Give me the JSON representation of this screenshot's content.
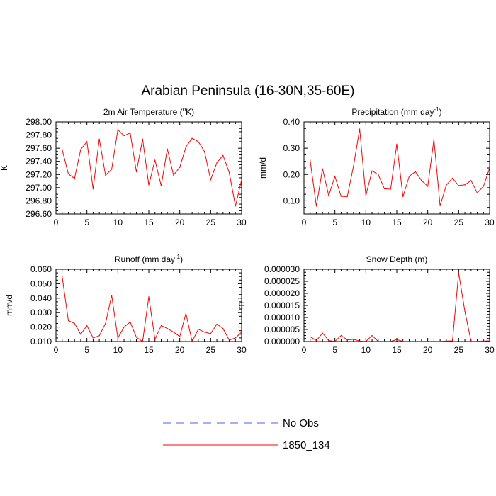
{
  "title": "Arabian Peninsula (16-30N,35-60E)",
  "series_color": "#ff0000",
  "obs_color": "#5a5aff",
  "legend": {
    "items": [
      {
        "label": "No Obs",
        "style": "dashed",
        "color": "#5a5aff"
      },
      {
        "label": "1850_134",
        "style": "solid",
        "color": "#ff0000"
      }
    ]
  },
  "chart_data": [
    {
      "type": "line",
      "title": "2m Air Temperature (°K)",
      "title_parts": {
        "pre": "2m Air Temperature (",
        "sup": "o",
        "post": "K)"
      },
      "ylabel": "K",
      "xlim": [
        0,
        30
      ],
      "ylim": [
        296.6,
        298.0
      ],
      "xticks": [
        "0",
        "5",
        "10",
        "15",
        "20",
        "25",
        "30"
      ],
      "yticks": [
        "296.60",
        "296.80",
        "297.00",
        "297.20",
        "297.40",
        "297.60",
        "297.80",
        "298.00"
      ],
      "series": [
        {
          "name": "1850_134",
          "x": [
            1,
            2,
            3,
            4,
            5,
            6,
            7,
            8,
            9,
            10,
            11,
            12,
            13,
            14,
            15,
            16,
            17,
            18,
            19,
            20,
            21,
            22,
            23,
            24,
            25,
            26,
            27,
            28,
            29,
            30
          ],
          "values": [
            297.58,
            297.21,
            297.14,
            297.58,
            297.7,
            296.98,
            297.74,
            297.19,
            297.28,
            297.88,
            297.79,
            297.83,
            297.24,
            297.74,
            297.04,
            297.42,
            297.03,
            297.59,
            297.19,
            297.31,
            297.62,
            297.75,
            297.7,
            297.55,
            297.12,
            297.38,
            297.49,
            297.23,
            296.72,
            297.12
          ]
        }
      ]
    },
    {
      "type": "line",
      "title": "Precipitation (mm day-1)",
      "title_parts": {
        "pre": "Precipitation (mm day",
        "sup": "-1",
        "post": ")"
      },
      "ylabel": "mm/d",
      "xlim": [
        0,
        30
      ],
      "ylim": [
        0.05,
        0.4
      ],
      "xticks": [
        "0",
        "5",
        "10",
        "15",
        "20",
        "25",
        "30"
      ],
      "yticks": [
        "0.10",
        "0.20",
        "0.30",
        "0.40"
      ],
      "series": [
        {
          "name": "1850_134",
          "x": [
            1,
            2,
            3,
            4,
            5,
            6,
            7,
            8,
            9,
            10,
            11,
            12,
            13,
            14,
            15,
            16,
            17,
            18,
            19,
            20,
            21,
            22,
            23,
            24,
            25,
            26,
            27,
            28,
            29,
            30
          ],
          "values": [
            0.255,
            0.08,
            0.222,
            0.12,
            0.193,
            0.117,
            0.116,
            0.232,
            0.373,
            0.12,
            0.214,
            0.2,
            0.146,
            0.144,
            0.316,
            0.116,
            0.193,
            0.211,
            0.177,
            0.155,
            0.334,
            0.081,
            0.16,
            0.186,
            0.158,
            0.161,
            0.177,
            0.13,
            0.155,
            0.225
          ]
        }
      ]
    },
    {
      "type": "line",
      "title": "Runoff (mm day-1)",
      "title_parts": {
        "pre": "Runoff (mm day",
        "sup": "-1",
        "post": ")"
      },
      "ylabel": "mm/d",
      "xlim": [
        0,
        30
      ],
      "ylim": [
        0.01,
        0.06
      ],
      "xticks": [
        "0",
        "5",
        "10",
        "15",
        "20",
        "25",
        "30"
      ],
      "yticks": [
        "0.010",
        "0.020",
        "0.030",
        "0.040",
        "0.050",
        "0.060"
      ],
      "series": [
        {
          "name": "1850_134",
          "x": [
            1,
            2,
            3,
            4,
            5,
            6,
            7,
            8,
            9,
            10,
            11,
            12,
            13,
            14,
            15,
            16,
            17,
            18,
            19,
            20,
            21,
            22,
            23,
            24,
            25,
            26,
            27,
            28,
            29,
            30
          ],
          "values": [
            0.055,
            0.0245,
            0.0225,
            0.015,
            0.021,
            0.0125,
            0.014,
            0.0225,
            0.042,
            0.0125,
            0.02,
            0.0235,
            0.013,
            0.01,
            0.041,
            0.0115,
            0.021,
            0.019,
            0.0165,
            0.0135,
            0.0295,
            0.01,
            0.0185,
            0.0165,
            0.0155,
            0.022,
            0.019,
            0.011,
            0.0125,
            0.0165
          ]
        }
      ]
    },
    {
      "type": "line",
      "title": "Snow Depth (m)",
      "title_parts": {
        "pre": "Snow Depth (m)",
        "sup": "",
        "post": ""
      },
      "ylabel": "m",
      "xlim": [
        0,
        30
      ],
      "ylim": [
        0.0,
        3e-05
      ],
      "xticks": [
        "0",
        "5",
        "10",
        "15",
        "20",
        "25",
        "30"
      ],
      "yticks": [
        "0.000000",
        "0.000005",
        "0.000010",
        "0.000015",
        "0.000020",
        "0.000025",
        "0.000030"
      ],
      "series": [
        {
          "name": "1850_134",
          "x": [
            1,
            2,
            3,
            4,
            5,
            6,
            7,
            8,
            9,
            10,
            11,
            12,
            13,
            14,
            15,
            16,
            17,
            18,
            19,
            20,
            21,
            22,
            23,
            24,
            25,
            26,
            27,
            28,
            29,
            30
          ],
          "values": [
            2e-06,
            4e-07,
            3.5e-06,
            4e-07,
            1e-07,
            2.5e-06,
            7e-07,
            9e-07,
            2e-07,
            1e-07,
            2.5e-06,
            1e-07,
            1e-07,
            1e-07,
            8e-07,
            1e-07,
            1e-07,
            1e-07,
            1e-07,
            1e-07,
            1e-07,
            1e-07,
            2e-07,
            3e-07,
            2.85e-05,
            1.25e-05,
            1e-07,
            1e-07,
            2e-07,
            3e-07
          ]
        }
      ]
    }
  ]
}
